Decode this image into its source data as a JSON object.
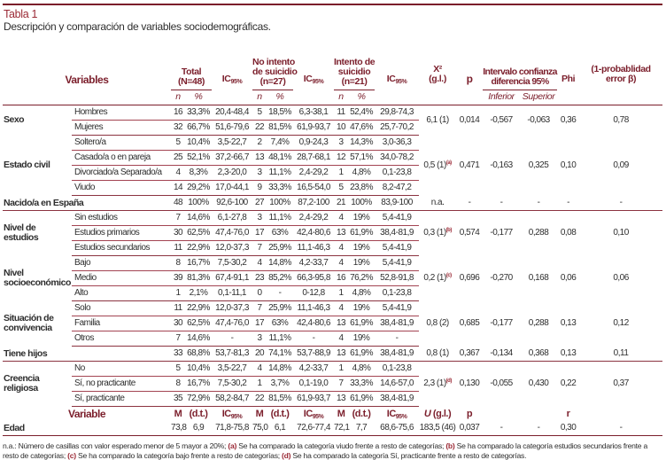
{
  "title": "Tabla 1",
  "subtitle": "Descripción y comparación de variables sociodemográficas.",
  "accent_color": "#7b1e2b",
  "header": {
    "variables": "Variables",
    "total": [
      "Total",
      "(N=48)"
    ],
    "no_intento": [
      "No intento",
      "de suicidio",
      "(n=27)"
    ],
    "intento": [
      "Intento de",
      "suicidio",
      "(n=21)"
    ],
    "ic": "IC",
    "ic_sub": "95%",
    "chi": "X²",
    "gl": "(g.l.)",
    "p": "p",
    "intervalo": [
      "Intervalo confianza",
      "diferencia 95%"
    ],
    "phi": "Phi",
    "power": [
      "(1-probablidad",
      "error β)"
    ],
    "n": "n",
    "pct": "%",
    "inferior": "Inferior",
    "superior": "Superior"
  },
  "groups": [
    {
      "label": "Sexo",
      "stats": {
        "x2": "6,1 (1)",
        "note": "",
        "p": "0,014",
        "inf": "-0,567",
        "sup": "-0,063",
        "phi": "0,36",
        "power": "0,78"
      },
      "rows": [
        {
          "label": "Hombres",
          "v": [
            "16",
            "33,3%",
            "20,4-48,4",
            "5",
            "18,5%",
            "6,3-38,1",
            "11",
            "52,4%",
            "29,8-74,3"
          ]
        },
        {
          "label": "Mujeres",
          "v": [
            "32",
            "66,7%",
            "51,6-79,6",
            "22",
            "81,5%",
            "61,9-93,7",
            "10",
            "47,6%",
            "25,7-70,2"
          ]
        }
      ]
    },
    {
      "label": "Estado civil",
      "stats": {
        "x2": "0,5 (1)",
        "note": "(a)",
        "p": "0,471",
        "inf": "-0,163",
        "sup": "0,325",
        "phi": "0,10",
        "power": "0,09"
      },
      "rows": [
        {
          "label": "Soltero/a",
          "v": [
            "5",
            "10,4%",
            "3,5-22,7",
            "2",
            "7,4%",
            "0,9-24,3",
            "3",
            "14,3%",
            "3,0-36,3"
          ]
        },
        {
          "label": "Casado/a o en pareja",
          "v": [
            "25",
            "52,1%",
            "37,2-66,7",
            "13",
            "48,1%",
            "28,7-68,1",
            "12",
            "57,1%",
            "34,0-78,2"
          ]
        },
        {
          "label": "Divorciado/a Separado/a",
          "v": [
            "4",
            "8,3%",
            "2,3-20,0",
            "3",
            "11,1%",
            "2,4-29,2",
            "1",
            "4,8%",
            "0,1-23,8"
          ]
        },
        {
          "label": "Viudo",
          "v": [
            "14",
            "29,2%",
            "17,0-44,1",
            "9",
            "33,3%",
            "16,5-54,0",
            "5",
            "23,8%",
            "8,2-47,2"
          ]
        }
      ]
    },
    {
      "label": "Nacido/a en España",
      "single": true,
      "stats": {
        "x2": "n.a.",
        "note": "",
        "p": "-",
        "inf": "-",
        "sup": "-",
        "phi": "-",
        "power": "-"
      },
      "rows": [
        {
          "label": "",
          "v": [
            "48",
            "100%",
            "92,6-100",
            "27",
            "100%",
            "87,2-100",
            "21",
            "100%",
            "83,9-100"
          ]
        }
      ]
    },
    {
      "label": "Nivel de estudios",
      "stats": {
        "x2": "0,3 (1)",
        "note": "(b)",
        "p": "0,574",
        "inf": "-0,177",
        "sup": "0,288",
        "phi": "0,08",
        "power": "0,10"
      },
      "rows": [
        {
          "label": "Sin estudios",
          "v": [
            "7",
            "14,6%",
            "6,1-27,8",
            "3",
            "11,1%",
            "2,4-29,2",
            "4",
            "19%",
            "5,4-41,9"
          ]
        },
        {
          "label": "Estudios primarios",
          "v": [
            "30",
            "62,5%",
            "47,4-76,0",
            "17",
            "63%",
            "42,4-80,6",
            "13",
            "61,9%",
            "38,4-81,9"
          ]
        },
        {
          "label": "Estudios secundarios",
          "v": [
            "11",
            "22,9%",
            "12,0-37,3",
            "7",
            "25,9%",
            "11,1-46,3",
            "4",
            "19%",
            "5,4-41,9"
          ]
        }
      ]
    },
    {
      "label": "Nivel socioeconómico",
      "stats": {
        "x2": "0,2 (1)",
        "note": "(c)",
        "p": "0,696",
        "inf": "-0,270",
        "sup": "0,168",
        "phi": "0,06",
        "power": "0,06"
      },
      "rows": [
        {
          "label": "Bajo",
          "v": [
            "8",
            "16,7%",
            "7,5-30,2",
            "4",
            "14,8%",
            "4,2-33,7",
            "4",
            "19%",
            "5,4-41,9"
          ]
        },
        {
          "label": "Medio",
          "v": [
            "39",
            "81,3%",
            "67,4-91,1",
            "23",
            "85,2%",
            "66,3-95,8",
            "16",
            "76,2%",
            "52,8-91,8"
          ]
        },
        {
          "label": "Alto",
          "v": [
            "1",
            "2,1%",
            "0,1-11,1",
            "0",
            "-",
            "0-12,8",
            "1",
            "4,8%",
            "0,1-23,8"
          ]
        }
      ]
    },
    {
      "label": "Situación de convivencia",
      "stats": {
        "x2": "0,8 (2)",
        "note": "",
        "p": "0,685",
        "inf": "-0,177",
        "sup": "0,288",
        "phi": "0,13",
        "power": "0,12"
      },
      "rows": [
        {
          "label": "Solo",
          "v": [
            "11",
            "22,9%",
            "12,0-37,3",
            "7",
            "25,9%",
            "11,1-46,3",
            "4",
            "19%",
            "5,4-41,9"
          ]
        },
        {
          "label": "Familia",
          "v": [
            "30",
            "62,5%",
            "47,4-76,0",
            "17",
            "63%",
            "42,4-80,6",
            "13",
            "61,9%",
            "38,4-81,9"
          ]
        },
        {
          "label": "Otros",
          "v": [
            "7",
            "14,6%",
            "-",
            "3",
            "11,1%",
            "-",
            "4",
            "19%",
            "-"
          ]
        }
      ]
    },
    {
      "label": "Tiene hijos",
      "single": true,
      "stats": {
        "x2": "0,8 (1)",
        "note": "",
        "p": "0,367",
        "inf": "-0,134",
        "sup": "0,368",
        "phi": "0,13",
        "power": "0,11"
      },
      "rows": [
        {
          "label": "",
          "v": [
            "33",
            "68,8%",
            "53,7-81,3",
            "20",
            "74,1%",
            "53,7-88,9",
            "13",
            "61,9%",
            "38,4-81,9"
          ]
        }
      ]
    },
    {
      "label": "Creencia religiosa",
      "stats": {
        "x2": "2,3 (1)",
        "note": "(d)",
        "p": "0,130",
        "inf": "-0,055",
        "sup": "0,430",
        "phi": "0,22",
        "power": "0,37"
      },
      "rows": [
        {
          "label": "No",
          "v": [
            "5",
            "10,4%",
            "3,5-22,7",
            "4",
            "14,8%",
            "4,2-33,7",
            "1",
            "4,8%",
            "0,1-23,8"
          ]
        },
        {
          "label": "Sí, no practicante",
          "v": [
            "8",
            "16,7%",
            "7,5-30,2",
            "1",
            "3,7%",
            "0,1-19,0",
            "7",
            "33,3%",
            "14,6-57,0"
          ]
        },
        {
          "label": "Sí, practicante",
          "v": [
            "35",
            "72,9%",
            "58,2-84,7",
            "22",
            "81,5%",
            "61,9-93,7",
            "13",
            "61,9%",
            "38,4-81,9"
          ]
        }
      ]
    }
  ],
  "continuous_header": {
    "variable": "Variable",
    "m": "M",
    "dt": "(d.t.)",
    "u": "U",
    "gl": " (g.l.)",
    "p": "p",
    "r": "r"
  },
  "edad": {
    "label": "Edad",
    "v": [
      "73,8",
      "6,9",
      "71,8-75,8",
      "75,0",
      "6,1",
      "72,6-77,4",
      "72,1",
      "7,7",
      "68,6-75,6"
    ],
    "u": "183,5 (46)",
    "p": "0,037",
    "inf": "-",
    "sup": "-",
    "r": "0,30",
    "power": "-"
  },
  "footnote": [
    {
      "t": "n.a.: Número de casillas con valor esperado menor de 5 mayor a 20%; "
    },
    {
      "b": "(a)"
    },
    {
      "t": " Se ha comparado la categoría viudo frente a resto de categorías; "
    },
    {
      "b": "(b)"
    },
    {
      "t": " Se ha comparado la categoría estudios secundarios frente a resto de categorías; "
    },
    {
      "b": "(c)"
    },
    {
      "t": " Se ha comparado la categoría bajo frente a resto de categorías; "
    },
    {
      "b": "(d)"
    },
    {
      "t": " Se ha comparado la categoría Sí, practicante frente a resto de categorías."
    }
  ]
}
